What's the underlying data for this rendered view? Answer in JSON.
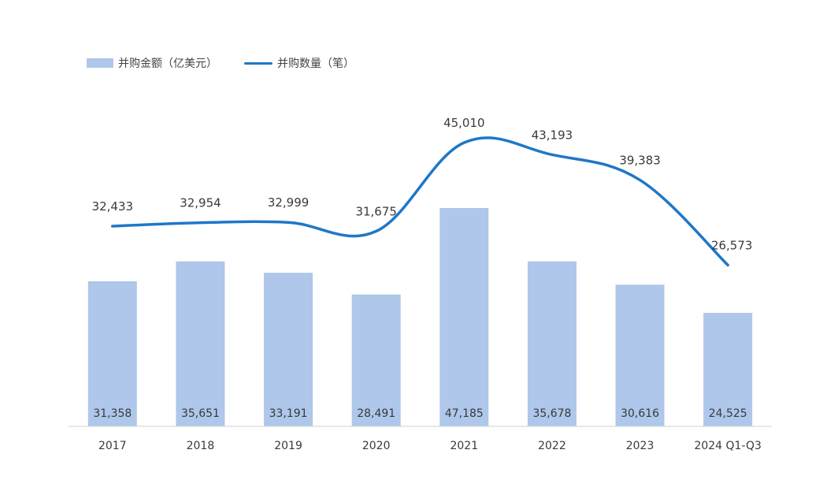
{
  "legend": {
    "bar_label": "并购金额（亿美元）",
    "line_label": "并购数量（笔）"
  },
  "colors": {
    "bar": "#aec7ea",
    "line": "#1f77c8",
    "text": "#3a3a3a",
    "axis": "#d0d0d0"
  },
  "chart_data": {
    "type": "bar",
    "categories": [
      "2017",
      "2018",
      "2019",
      "2020",
      "2021",
      "2022",
      "2023",
      "2024 Q1-Q3"
    ],
    "series": [
      {
        "name": "并购金额（亿美元）",
        "type": "bar",
        "values": [
          31358,
          35651,
          33191,
          28491,
          47185,
          35678,
          30616,
          24525
        ],
        "labels": [
          "31,358",
          "35,651",
          "33,191",
          "28,491",
          "47,185",
          "35,678",
          "30,616",
          "24,525"
        ]
      },
      {
        "name": "并购数量（笔）",
        "type": "line",
        "values": [
          32433,
          32954,
          32999,
          31675,
          45010,
          43193,
          39383,
          26573
        ],
        "labels": [
          "32,433",
          "32,954",
          "32,999",
          "31,675",
          "45,010",
          "43,193",
          "39,383",
          "26,573"
        ]
      }
    ],
    "grid": false
  }
}
